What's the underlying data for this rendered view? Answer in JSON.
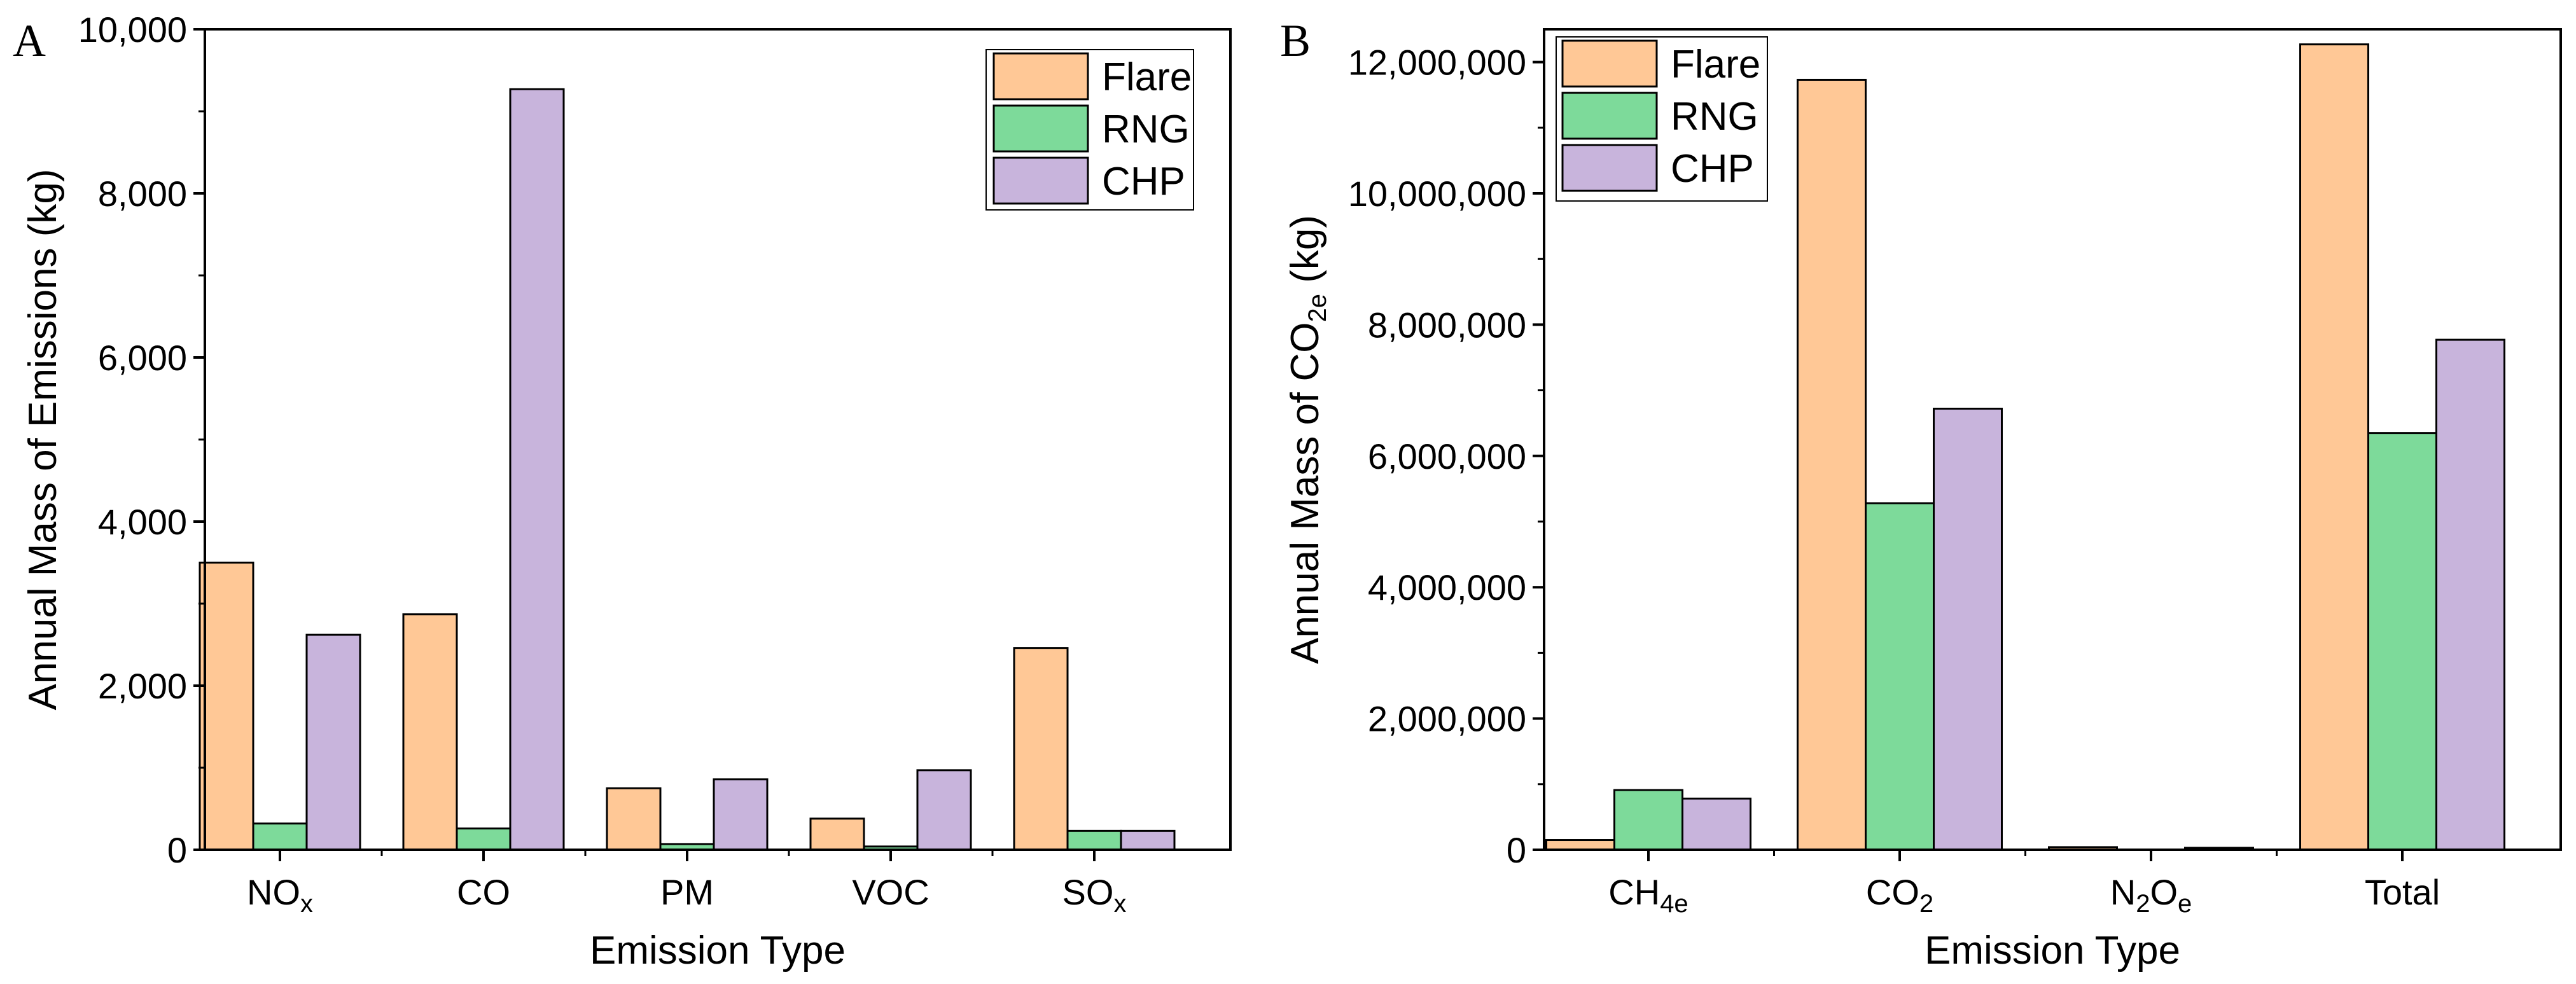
{
  "colors": {
    "Flare": "#FFC896",
    "RNG": "#7DDA9A",
    "CHP": "#C8B4DC",
    "axis": "#000000"
  },
  "chart_data": [
    {
      "panel_label": "A",
      "type": "bar",
      "title": "",
      "xlabel": "Emission Type",
      "ylabel": "Annual Mass of Emissions (kg)",
      "ylim": [
        0,
        10000
      ],
      "yticks": [
        0,
        2000,
        4000,
        6000,
        8000,
        10000
      ],
      "ytick_labels": [
        "0",
        "2,000",
        "4,000",
        "6,000",
        "8,000",
        "10,000"
      ],
      "categories": [
        {
          "base": "NO",
          "sub": "x"
        },
        {
          "base": "CO",
          "sub": ""
        },
        {
          "base": "PM",
          "sub": ""
        },
        {
          "base": "VOC",
          "sub": ""
        },
        {
          "base": "SO",
          "sub": "x"
        }
      ],
      "series": [
        {
          "name": "Flare",
          "values": [
            3500,
            2870,
            750,
            380,
            2460
          ]
        },
        {
          "name": "RNG",
          "values": [
            320,
            260,
            70,
            40,
            230
          ]
        },
        {
          "name": "CHP",
          "values": [
            2620,
            9270,
            860,
            970,
            230
          ]
        }
      ],
      "legend_position": "top-right"
    },
    {
      "panel_label": "B",
      "type": "bar",
      "title": "",
      "xlabel": "Emission Type",
      "ylabel": {
        "prefix": "Annual Mass of CO",
        "sub": "2e",
        "suffix": " (kg)"
      },
      "ylim": [
        0,
        12500000
      ],
      "yticks": [
        0,
        2000000,
        4000000,
        6000000,
        8000000,
        10000000,
        12000000
      ],
      "ytick_labels": [
        "0",
        "2,000,000",
        "4,000,000",
        "6,000,000",
        "8,000,000",
        "10,000,000",
        "12,000,000"
      ],
      "categories": [
        {
          "parts": [
            {
              "t": "CH",
              "s": false
            },
            {
              "t": "4e",
              "s": true
            }
          ]
        },
        {
          "parts": [
            {
              "t": "CO",
              "s": false
            },
            {
              "t": "2",
              "s": true
            }
          ]
        },
        {
          "parts": [
            {
              "t": "N",
              "s": false
            },
            {
              "t": "2",
              "s": true
            },
            {
              "t": "O",
              "s": false
            },
            {
              "t": "e",
              "s": true
            }
          ]
        },
        {
          "parts": [
            {
              "t": "Total",
              "s": false
            }
          ]
        }
      ],
      "series": [
        {
          "name": "Flare",
          "values": [
            150000,
            11730000,
            40000,
            12270000
          ]
        },
        {
          "name": "RNG",
          "values": [
            910000,
            5280000,
            0,
            6350000
          ]
        },
        {
          "name": "CHP",
          "values": [
            780000,
            6720000,
            30000,
            7770000
          ]
        }
      ],
      "legend_position": "top-left"
    }
  ]
}
